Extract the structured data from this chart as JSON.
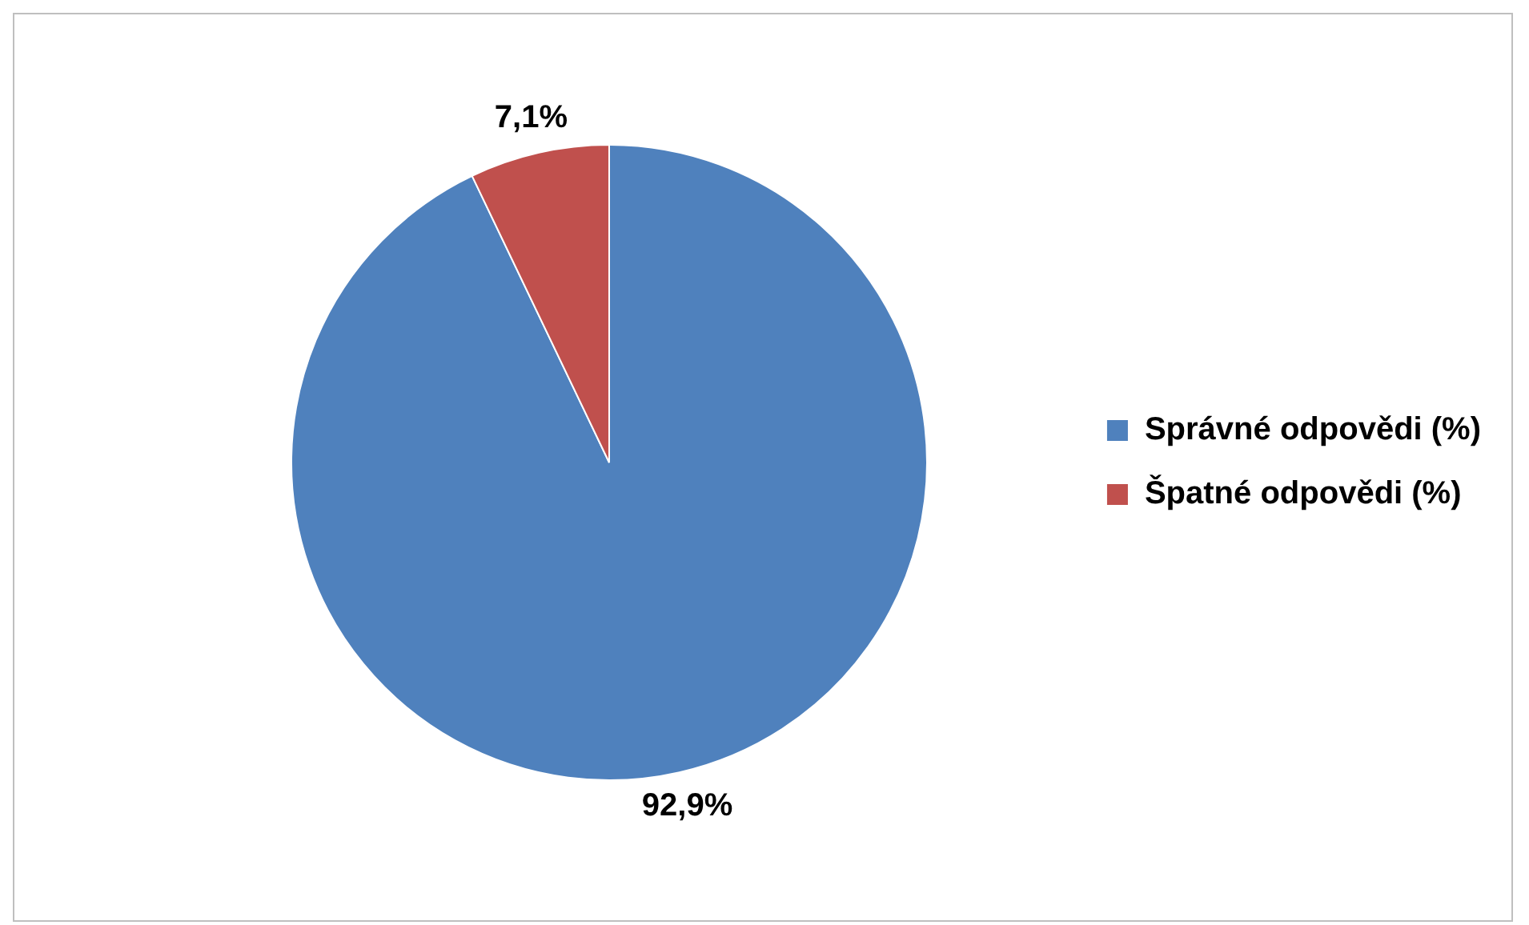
{
  "chart_data": {
    "type": "pie",
    "categories": [
      "Správné odpovědi (%)",
      "Špatné odpovědi (%)"
    ],
    "values": [
      92.9,
      7.1
    ],
    "colors": [
      "#4f81bd",
      "#c0504d"
    ],
    "value_labels": [
      "92,9%",
      "7,1%"
    ],
    "legend": "right"
  }
}
